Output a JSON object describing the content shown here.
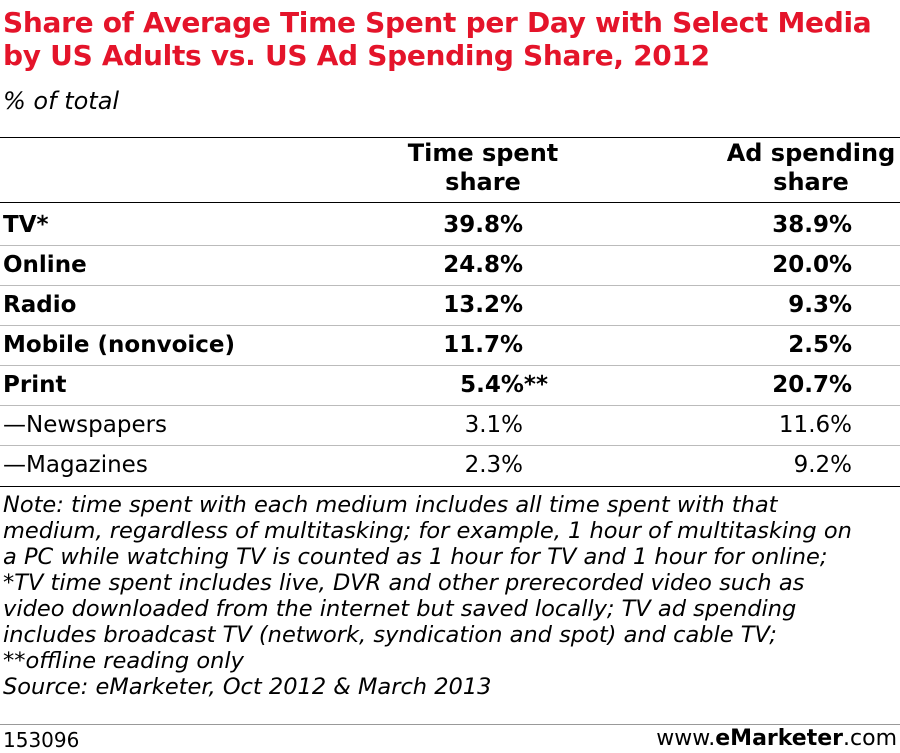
{
  "chart_data": {
    "type": "table",
    "title": "Share of Average Time Spent per Day with Select Media by US Adults vs. US Ad Spending Share, 2012",
    "subtitle": "% of total",
    "columns": [
      "Time spent share",
      "Ad spending share"
    ],
    "rows": [
      {
        "label": "TV*",
        "time": "39.8%",
        "ad": "38.9%",
        "bold": true
      },
      {
        "label": "Online",
        "time": "24.8%",
        "ad": "20.0%",
        "bold": true
      },
      {
        "label": "Radio",
        "time": "13.2%",
        "ad": "9.3%",
        "bold": true
      },
      {
        "label": "Mobile (nonvoice)",
        "time": "11.7%",
        "ad": "2.5%",
        "bold": true
      },
      {
        "label": "Print",
        "time": "5.4%**",
        "ad": "20.7%",
        "bold": true
      },
      {
        "label": "—Newspapers",
        "time": "3.1%",
        "ad": "11.6%",
        "bold": false
      },
      {
        "label": "—Magazines",
        "time": "2.3%",
        "ad": "9.2%",
        "bold": false
      }
    ]
  },
  "header": {
    "col1_line1": "Time spent",
    "col1_line2": "share",
    "col2_line1": "Ad spending",
    "col2_line2": "share"
  },
  "notes": {
    "line1": "Note: time spent with each medium includes all time spent with that",
    "line2": "medium, regardless of multitasking; for example, 1 hour of multitasking on",
    "line3": "a PC while watching TV is counted as 1 hour for TV and 1 hour for online;",
    "line4": "*TV time spent includes live, DVR and other prerecorded video such as",
    "line5": "video downloaded from the internet but saved locally; TV ad spending",
    "line6": "includes broadcast TV (network, syndication and spot) and cable TV;",
    "line7": "**offline reading only",
    "source": "Source: eMarketer, Oct 2012 & March 2013"
  },
  "footer": {
    "chart_id": "153096",
    "brand_prefix": "www.",
    "brand_bold": "eMarketer",
    "brand_suffix": ".com"
  }
}
